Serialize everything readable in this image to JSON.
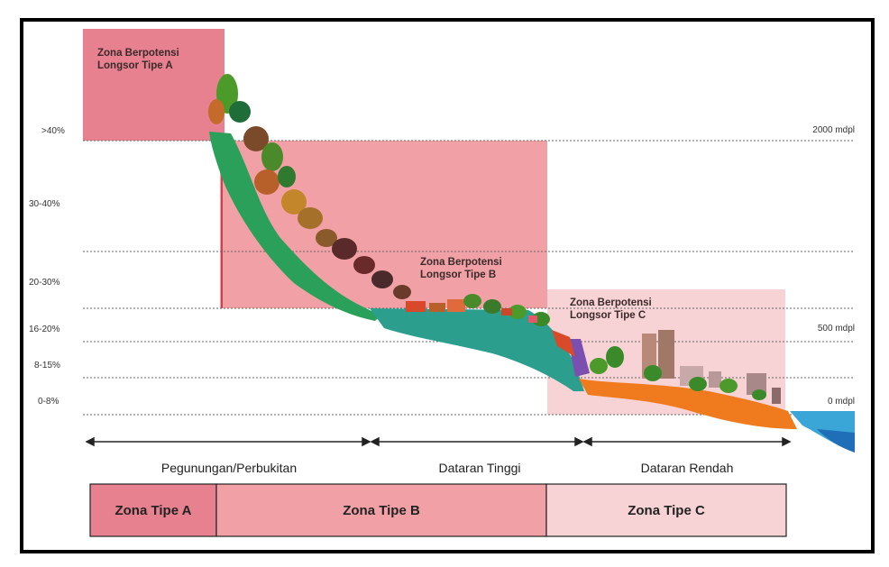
{
  "slope_labels": [
    ">40%",
    "30-40%",
    "20-30%",
    "16-20%",
    "8-15%",
    "0-8%"
  ],
  "elevation_labels": [
    "2000 mdpl",
    "500 mdpl",
    "0 mdpl"
  ],
  "zones": {
    "a": {
      "title": [
        "Zona Berpotensi",
        "Longsor Tipe A"
      ],
      "fill": "#e8818f"
    },
    "b": {
      "title": [
        "Zona Berpotensi",
        "Longsor Tipe B"
      ],
      "fill": "#f1a1a6"
    },
    "c": {
      "title": [
        "Zona Berpotensi",
        "Longsor Tipe C"
      ],
      "fill": "#f8d3d5"
    }
  },
  "regions": [
    "Pegunungan/Perbukitan",
    "Dataran Tinggi",
    "Dataran Rendah"
  ],
  "zone_boxes": [
    "Zona Tipe A",
    "Zona Tipe B",
    "Zona Tipe C"
  ]
}
